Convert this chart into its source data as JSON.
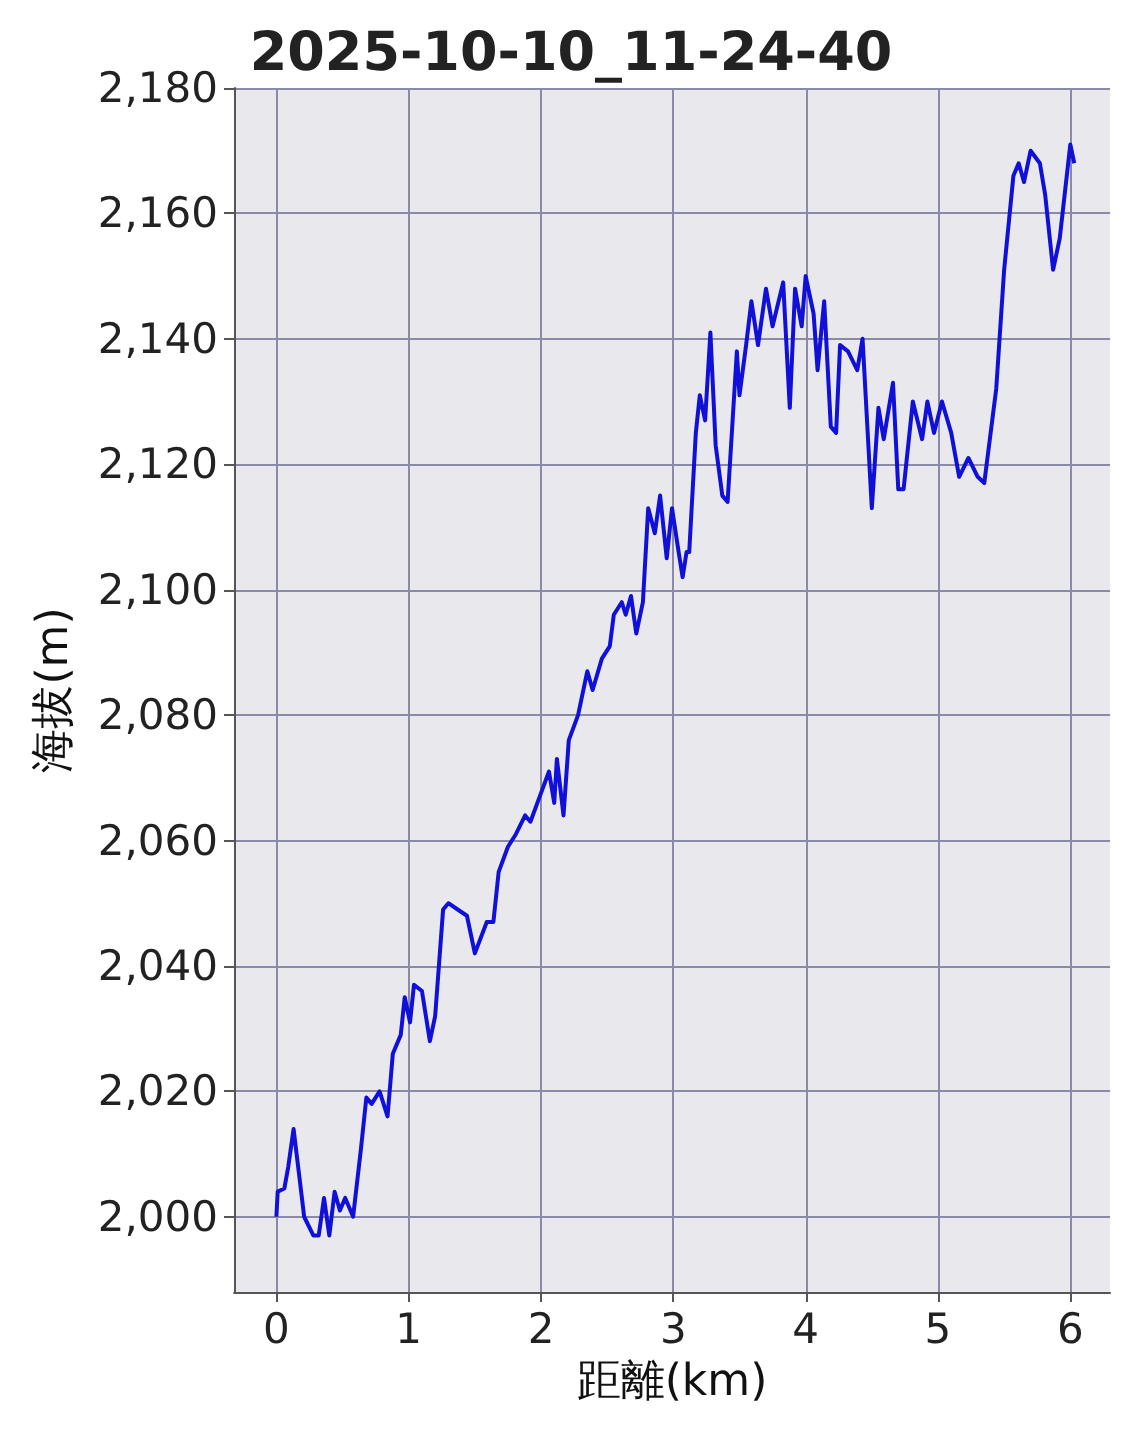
{
  "chart_data": {
    "type": "line",
    "title": "2025-10-10_11-24-40",
    "xlabel": "距離(km)",
    "ylabel": "海拔(m)",
    "x": [
      0.0,
      0.01,
      0.06,
      0.09,
      0.13,
      0.17,
      0.21,
      0.28,
      0.32,
      0.36,
      0.4,
      0.44,
      0.48,
      0.52,
      0.58,
      0.64,
      0.68,
      0.72,
      0.78,
      0.84,
      0.88,
      0.94,
      0.97,
      1.01,
      1.04,
      1.1,
      1.16,
      1.2,
      1.26,
      1.3,
      1.37,
      1.44,
      1.5,
      1.59,
      1.64,
      1.68,
      1.75,
      1.81,
      1.88,
      1.92,
      1.99,
      2.06,
      2.1,
      2.12,
      2.17,
      2.21,
      2.28,
      2.35,
      2.39,
      2.46,
      2.52,
      2.55,
      2.61,
      2.64,
      2.68,
      2.72,
      2.77,
      2.81,
      2.86,
      2.9,
      2.95,
      2.99,
      3.04,
      3.07,
      3.1,
      3.12,
      3.17,
      3.2,
      3.24,
      3.28,
      3.32,
      3.37,
      3.41,
      3.48,
      3.5,
      3.55,
      3.59,
      3.64,
      3.7,
      3.75,
      3.83,
      3.88,
      3.92,
      3.97,
      4.0,
      4.06,
      4.09,
      4.14,
      4.19,
      4.23,
      4.26,
      4.32,
      4.39,
      4.43,
      4.5,
      4.55,
      4.59,
      4.66,
      4.7,
      4.74,
      4.81,
      4.88,
      4.92,
      4.97,
      5.03,
      5.1,
      5.16,
      5.23,
      5.3,
      5.35,
      5.44,
      5.5,
      5.57,
      5.61,
      5.65,
      5.7,
      5.77,
      5.81,
      5.87,
      5.92,
      6.0,
      6.03
    ],
    "series": [
      {
        "color": "#1010d8",
        "values": [
          2000,
          2004,
          2004.5,
          2008,
          2014,
          2007,
          2000,
          1997,
          1997,
          2003,
          1997,
          2004,
          2001,
          2003,
          2000,
          2011,
          2019,
          2018,
          2020,
          2016,
          2026,
          2029,
          2035,
          2031,
          2037,
          2036,
          2028,
          2032,
          2049,
          2050,
          2049,
          2048,
          2042,
          2047,
          2047,
          2055,
          2059,
          2061,
          2064,
          2063,
          2067,
          2071,
          2066,
          2073,
          2064,
          2076,
          2080,
          2087,
          2084,
          2089,
          2091,
          2096,
          2098,
          2096,
          2099,
          2093,
          2098,
          2113,
          2109,
          2115,
          2105,
          2113,
          2106,
          2102,
          2106,
          2106,
          2125,
          2131,
          2127,
          2141,
          2123,
          2115,
          2114,
          2138,
          2131,
          2139,
          2146,
          2139,
          2148,
          2142,
          2149,
          2129,
          2148,
          2142,
          2150,
          2144,
          2135,
          2146,
          2126,
          2125,
          2139,
          2138,
          2135,
          2140,
          2113,
          2129,
          2124,
          2133,
          2116,
          2116,
          2130,
          2124,
          2130,
          2125,
          2130,
          2125,
          2118,
          2121,
          2118,
          2117,
          2132,
          2151,
          2166,
          2168,
          2165,
          2170,
          2168,
          2163,
          2151,
          2156,
          2171,
          2168
        ]
      }
    ],
    "xlim": [
      -0.32,
      6.3
    ],
    "ylim": [
      1988,
      2180
    ],
    "xticks": [
      0,
      1,
      2,
      3,
      4,
      5,
      6
    ],
    "yticks": [
      {
        "value": 2000,
        "label": "2,000"
      },
      {
        "value": 2020,
        "label": "2,020"
      },
      {
        "value": 2040,
        "label": "2,040"
      },
      {
        "value": 2060,
        "label": "2,060"
      },
      {
        "value": 2080,
        "label": "2,080"
      },
      {
        "value": 2100,
        "label": "2,100"
      },
      {
        "value": 2120,
        "label": "2,120"
      },
      {
        "value": 2140,
        "label": "2,140"
      },
      {
        "value": 2160,
        "label": "2,160"
      },
      {
        "value": 2180,
        "label": "2,180"
      }
    ],
    "grid": true,
    "marker": "none",
    "line_style": "solid"
  }
}
